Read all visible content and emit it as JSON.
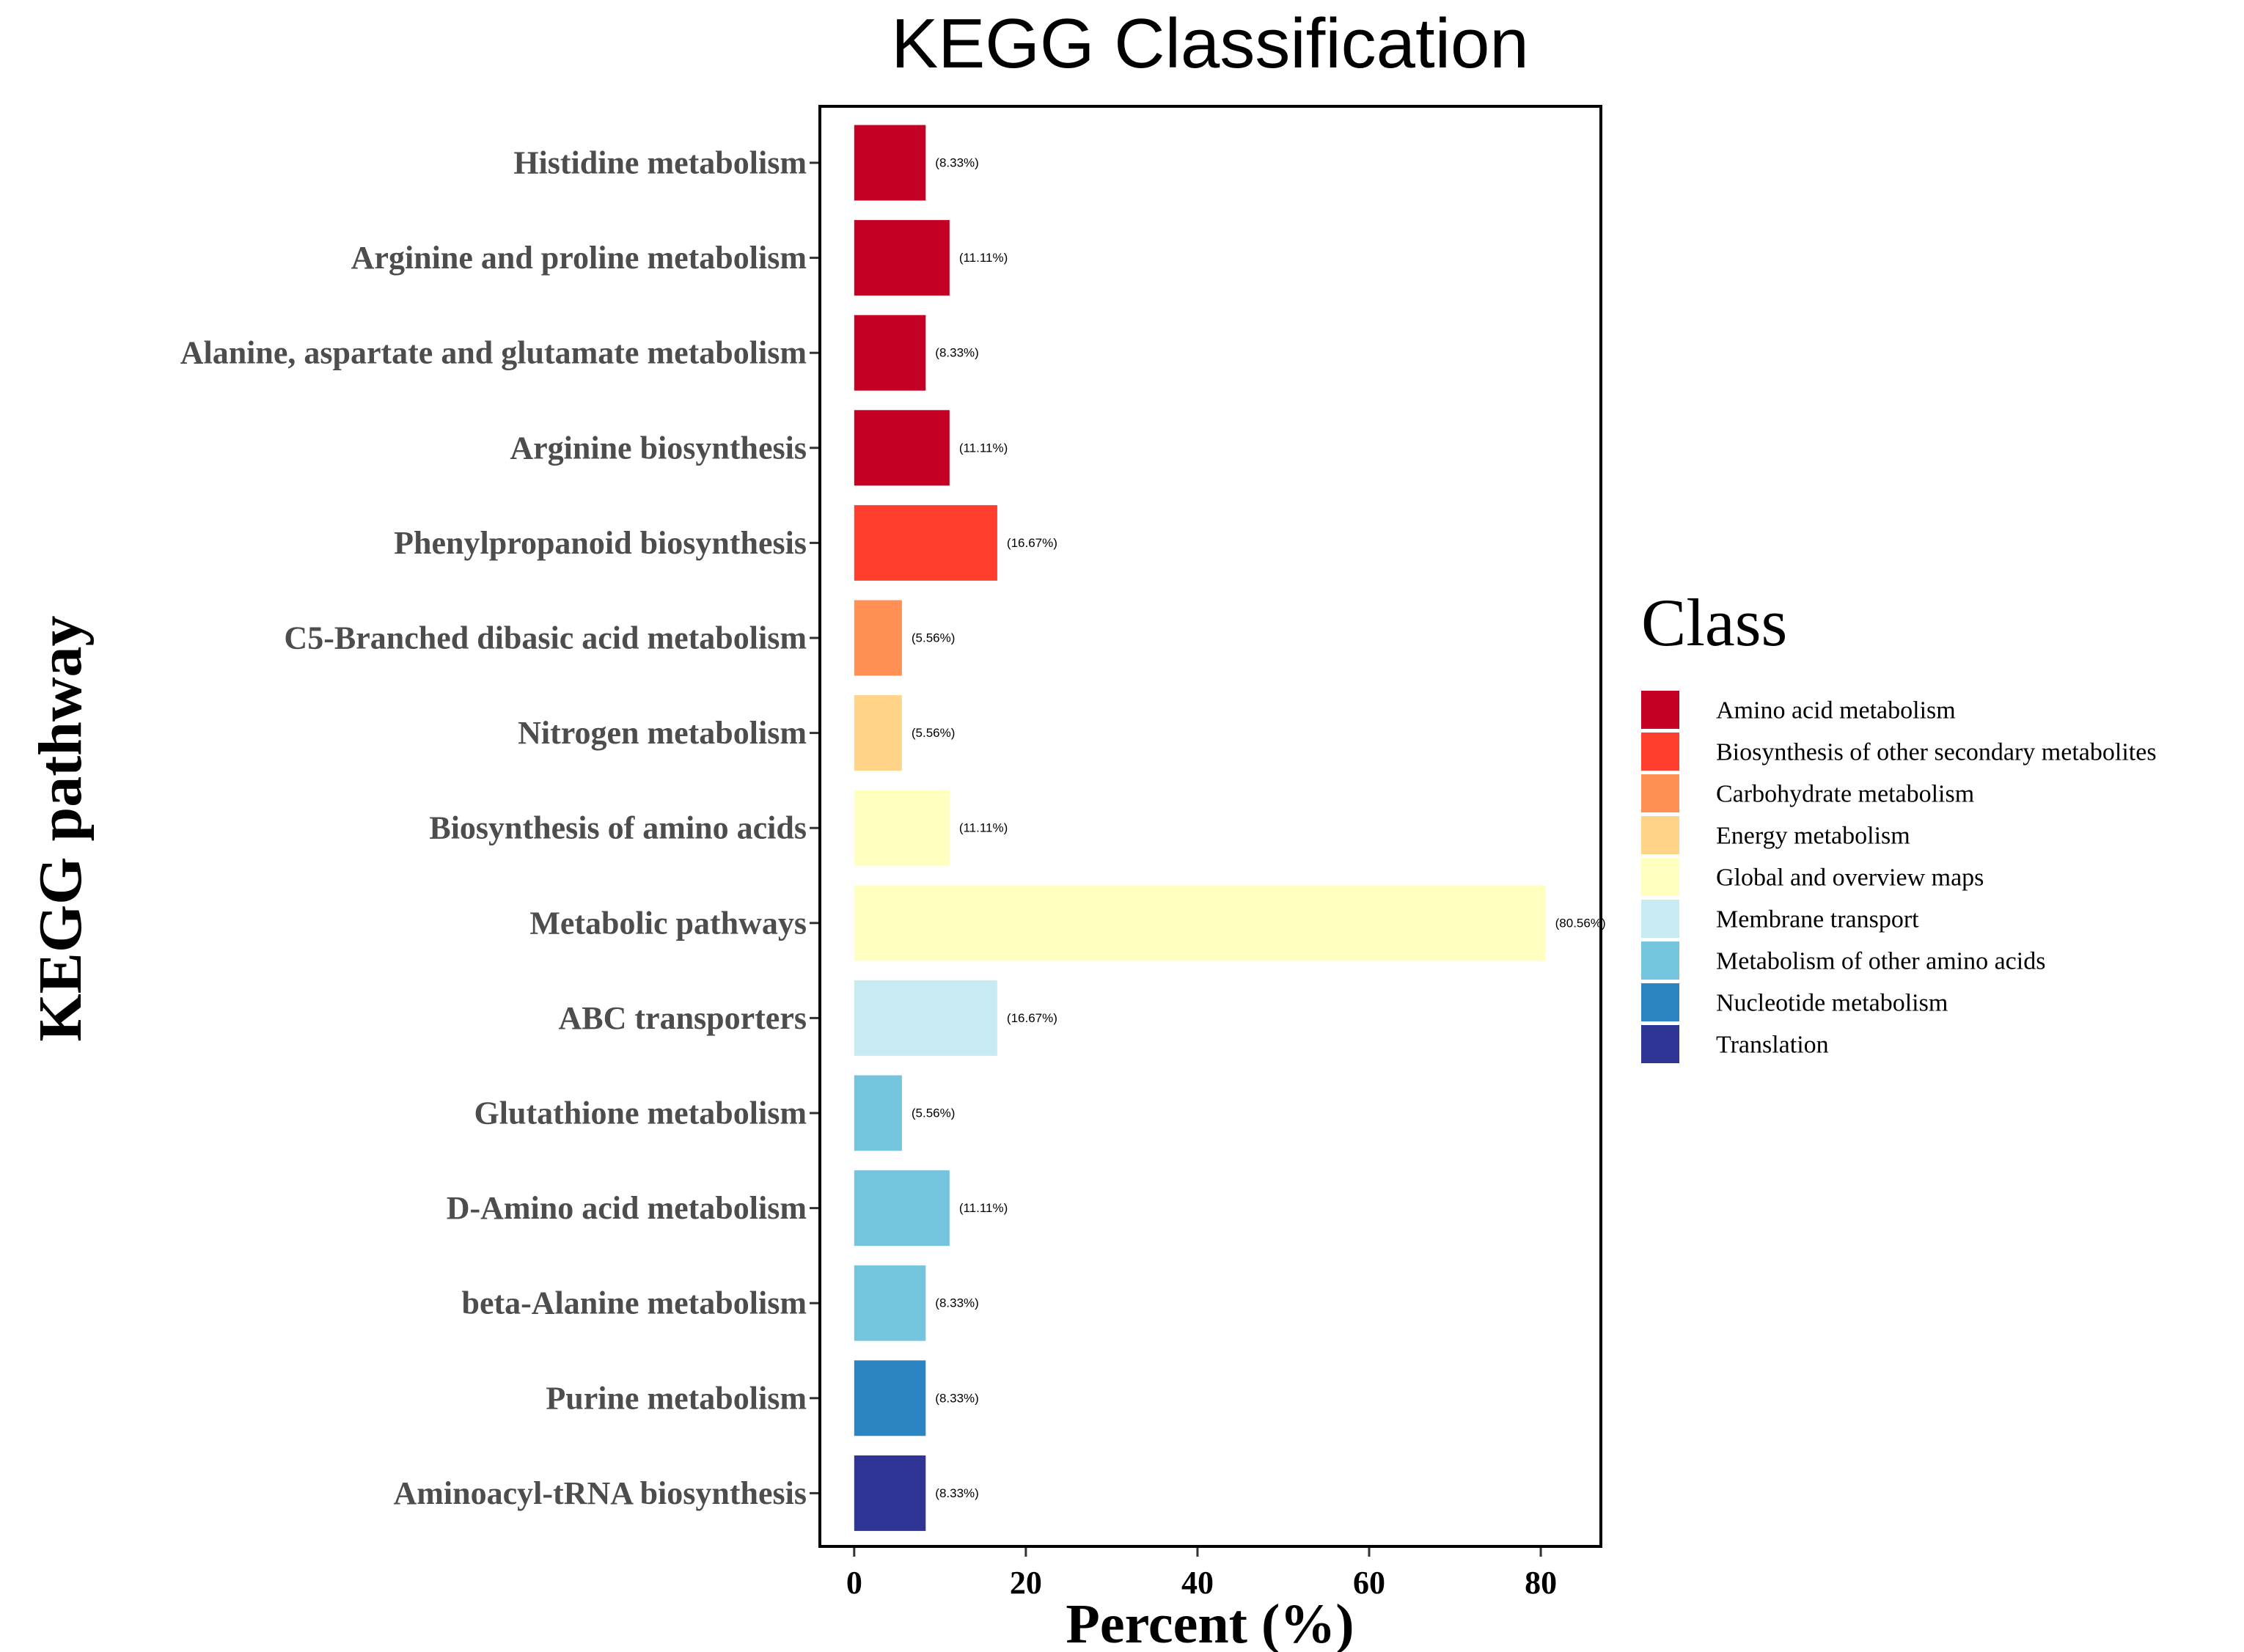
{
  "chart_data": {
    "type": "bar",
    "orientation": "horizontal",
    "title": "KEGG Classification",
    "xlabel": "Percent (%)",
    "ylabel": "KEGG pathway",
    "xlim": [
      -4,
      87
    ],
    "xticks": [
      0,
      20,
      40,
      60,
      80
    ],
    "grid": false,
    "legend_title": "Class",
    "legend_position": "right",
    "classes": [
      {
        "name": "Amino acid metabolism",
        "color": "#c40024"
      },
      {
        "name": "Biosynthesis of other secondary metabolites",
        "color": "#ff3e2e"
      },
      {
        "name": "Carbohydrate metabolism",
        "color": "#ff8f52"
      },
      {
        "name": "Energy metabolism",
        "color": "#ffd488"
      },
      {
        "name": "Global and overview maps",
        "color": "#ffffc0"
      },
      {
        "name": "Membrane transport",
        "color": "#c8ebf2"
      },
      {
        "name": "Metabolism of other amino acids",
        "color": "#74c4de"
      },
      {
        "name": "Nucleotide metabolism",
        "color": "#2a85c2"
      },
      {
        "name": "Translation",
        "color": "#2e3594"
      }
    ],
    "bars": [
      {
        "pathway": "Histidine metabolism",
        "value": 8.33,
        "label": "(8.33%)",
        "class": 0
      },
      {
        "pathway": "Arginine and proline metabolism",
        "value": 11.11,
        "label": "(11.11%)",
        "class": 0
      },
      {
        "pathway": "Alanine, aspartate and glutamate metabolism",
        "value": 8.33,
        "label": "(8.33%)",
        "class": 0
      },
      {
        "pathway": "Arginine biosynthesis",
        "value": 11.11,
        "label": "(11.11%)",
        "class": 0
      },
      {
        "pathway": "Phenylpropanoid biosynthesis",
        "value": 16.67,
        "label": "(16.67%)",
        "class": 1
      },
      {
        "pathway": "C5-Branched dibasic acid metabolism",
        "value": 5.56,
        "label": "(5.56%)",
        "class": 2
      },
      {
        "pathway": "Nitrogen metabolism",
        "value": 5.56,
        "label": "(5.56%)",
        "class": 3
      },
      {
        "pathway": "Biosynthesis of amino acids",
        "value": 11.11,
        "label": "(11.11%)",
        "class": 4
      },
      {
        "pathway": "Metabolic pathways",
        "value": 80.56,
        "label": "(80.56%)",
        "class": 4
      },
      {
        "pathway": "ABC transporters",
        "value": 16.67,
        "label": "(16.67%)",
        "class": 5
      },
      {
        "pathway": "Glutathione metabolism",
        "value": 5.56,
        "label": "(5.56%)",
        "class": 6
      },
      {
        "pathway": "D-Amino acid metabolism",
        "value": 11.11,
        "label": "(11.11%)",
        "class": 6
      },
      {
        "pathway": "beta-Alanine metabolism",
        "value": 8.33,
        "label": "(8.33%)",
        "class": 6
      },
      {
        "pathway": "Purine metabolism",
        "value": 8.33,
        "label": "(8.33%)",
        "class": 7
      },
      {
        "pathway": "Aminoacyl-tRNA biosynthesis",
        "value": 8.33,
        "label": "(8.33%)",
        "class": 8
      }
    ]
  }
}
